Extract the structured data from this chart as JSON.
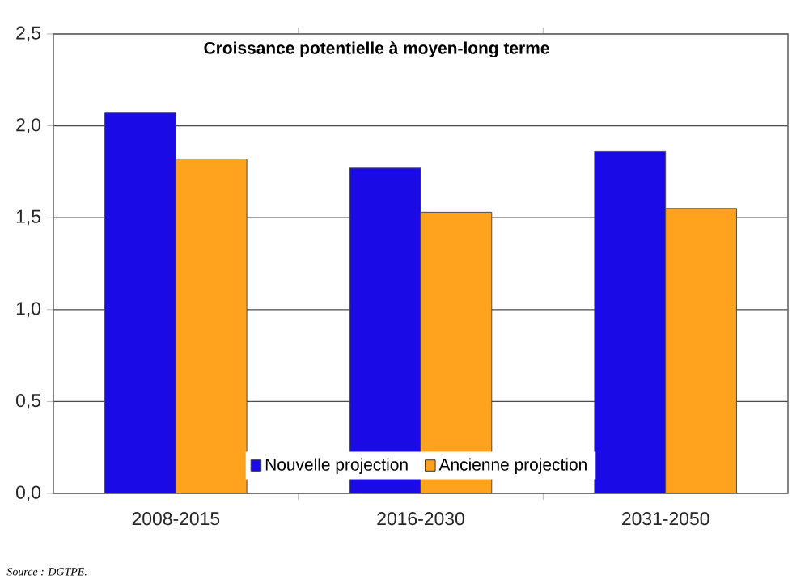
{
  "chart_data": {
    "type": "bar",
    "title": "Croissance potentielle à moyen-long terme",
    "categories": [
      "2008-2015",
      "2016-2030",
      "2031-2050"
    ],
    "series": [
      {
        "name": "Nouvelle projection",
        "color": "#1a0ae6",
        "values": [
          2.07,
          1.77,
          1.86
        ]
      },
      {
        "name": "Ancienne projection",
        "color": "#ffa31f",
        "values": [
          1.82,
          1.53,
          1.55
        ]
      }
    ],
    "ylim": [
      0,
      2.5
    ],
    "yticks": [
      {
        "value": 0,
        "label": "0,0"
      },
      {
        "value": 0.5,
        "label": "0,5"
      },
      {
        "value": 1,
        "label": "1,0"
      },
      {
        "value": 1.5,
        "label": "1,5"
      },
      {
        "value": 2,
        "label": "2,0"
      },
      {
        "value": 2.5,
        "label": "2,5"
      }
    ],
    "grid": "y",
    "legend": "bottom",
    "annotations": [
      "Source : DGTPE."
    ]
  }
}
